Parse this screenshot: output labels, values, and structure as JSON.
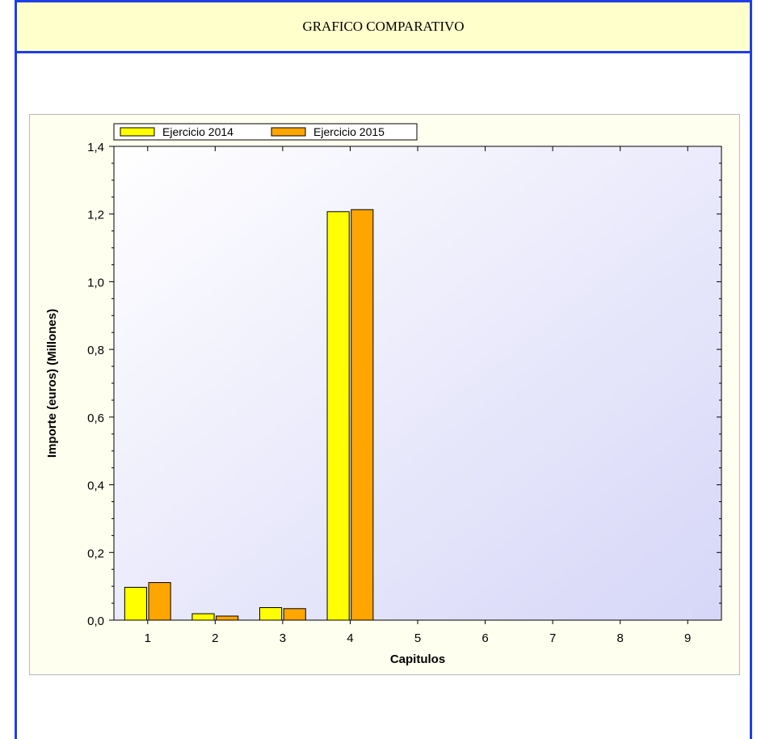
{
  "header": {
    "title": "GRAFICO COMPARATIVO"
  },
  "colors": {
    "frame": "#1f3fe6",
    "header_bg": "#ffffcc",
    "series_2014": "#ffff00",
    "series_2015": "#ffa500"
  },
  "chart_data": {
    "type": "bar",
    "categories": [
      "1",
      "2",
      "3",
      "4",
      "5",
      "6",
      "7",
      "8",
      "9"
    ],
    "series": [
      {
        "name": "Ejercicio 2014",
        "values": [
          0.097,
          0.019,
          0.037,
          1.207,
          0,
          0,
          0,
          0,
          0
        ]
      },
      {
        "name": "Ejercicio 2015",
        "values": [
          0.111,
          0.012,
          0.034,
          1.213,
          0,
          0,
          0,
          0,
          0
        ]
      }
    ],
    "title": "",
    "xlabel": "Capitulos",
    "ylabel": "Importe (euros) (Millones)",
    "ylim": [
      0,
      1.4
    ],
    "yticks": [
      "0,0",
      "0,2",
      "0,4",
      "0,6",
      "0,8",
      "1,0",
      "1,2",
      "1,4"
    ],
    "legend": "top-left",
    "grid": false
  }
}
